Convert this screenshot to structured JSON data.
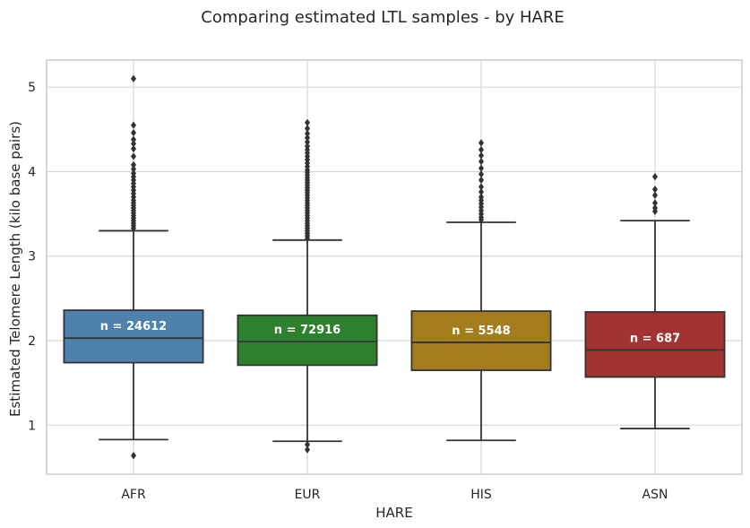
{
  "chart_data": {
    "type": "box",
    "title": "Comparing estimated LTL samples - by HARE",
    "xlabel": "HARE",
    "ylabel": "Estimated Telomere Length (kilo base pairs)",
    "ylim": [
      0.42,
      5.32
    ],
    "yticks": [
      1,
      2,
      3,
      4,
      5
    ],
    "grid": true,
    "categories": [
      "AFR",
      "EUR",
      "HIS",
      "ASN"
    ],
    "colors": [
      "#4e82ad",
      "#2e7f2e",
      "#a37c1e",
      "#a33232"
    ],
    "edge_color": "#333333",
    "boxes": [
      {
        "category": "AFR",
        "whisker_low": 0.83,
        "q1": 1.74,
        "median": 2.03,
        "q3": 2.36,
        "whisker_high": 3.3,
        "n_label": "n = 24612",
        "outliers": [
          0.64,
          3.33,
          3.36,
          3.39,
          3.42,
          3.45,
          3.48,
          3.51,
          3.54,
          3.57,
          3.6,
          3.63,
          3.66,
          3.7,
          3.74,
          3.78,
          3.82,
          3.86,
          3.9,
          3.94,
          3.98,
          4.03,
          4.08,
          4.18,
          4.27,
          4.33,
          4.38,
          4.46,
          4.55,
          5.1
        ]
      },
      {
        "category": "EUR",
        "whisker_low": 0.81,
        "q1": 1.71,
        "median": 1.99,
        "q3": 2.3,
        "whisker_high": 3.19,
        "n_label": "n = 72916",
        "outliers": [
          0.71,
          0.77,
          3.21,
          3.24,
          3.27,
          3.3,
          3.33,
          3.36,
          3.39,
          3.42,
          3.45,
          3.48,
          3.51,
          3.54,
          3.57,
          3.6,
          3.63,
          3.66,
          3.69,
          3.72,
          3.75,
          3.78,
          3.81,
          3.84,
          3.87,
          3.9,
          3.93,
          3.96,
          3.99,
          4.02,
          4.06,
          4.1,
          4.14,
          4.18,
          4.22,
          4.26,
          4.3,
          4.35,
          4.4,
          4.45,
          4.51,
          4.58
        ]
      },
      {
        "category": "HIS",
        "whisker_low": 0.82,
        "q1": 1.65,
        "median": 1.98,
        "q3": 2.35,
        "whisker_high": 3.4,
        "n_label": "n = 5548",
        "outliers": [
          3.43,
          3.46,
          3.5,
          3.54,
          3.58,
          3.62,
          3.66,
          3.7,
          3.76,
          3.82,
          3.9,
          3.97,
          4.04,
          4.12,
          4.19,
          4.26,
          4.34
        ]
      },
      {
        "category": "ASN",
        "whisker_low": 0.96,
        "q1": 1.57,
        "median": 1.89,
        "q3": 2.34,
        "whisker_high": 3.42,
        "n_label": "n = 687",
        "outliers": [
          3.53,
          3.57,
          3.63,
          3.72,
          3.79,
          3.94
        ]
      }
    ]
  }
}
